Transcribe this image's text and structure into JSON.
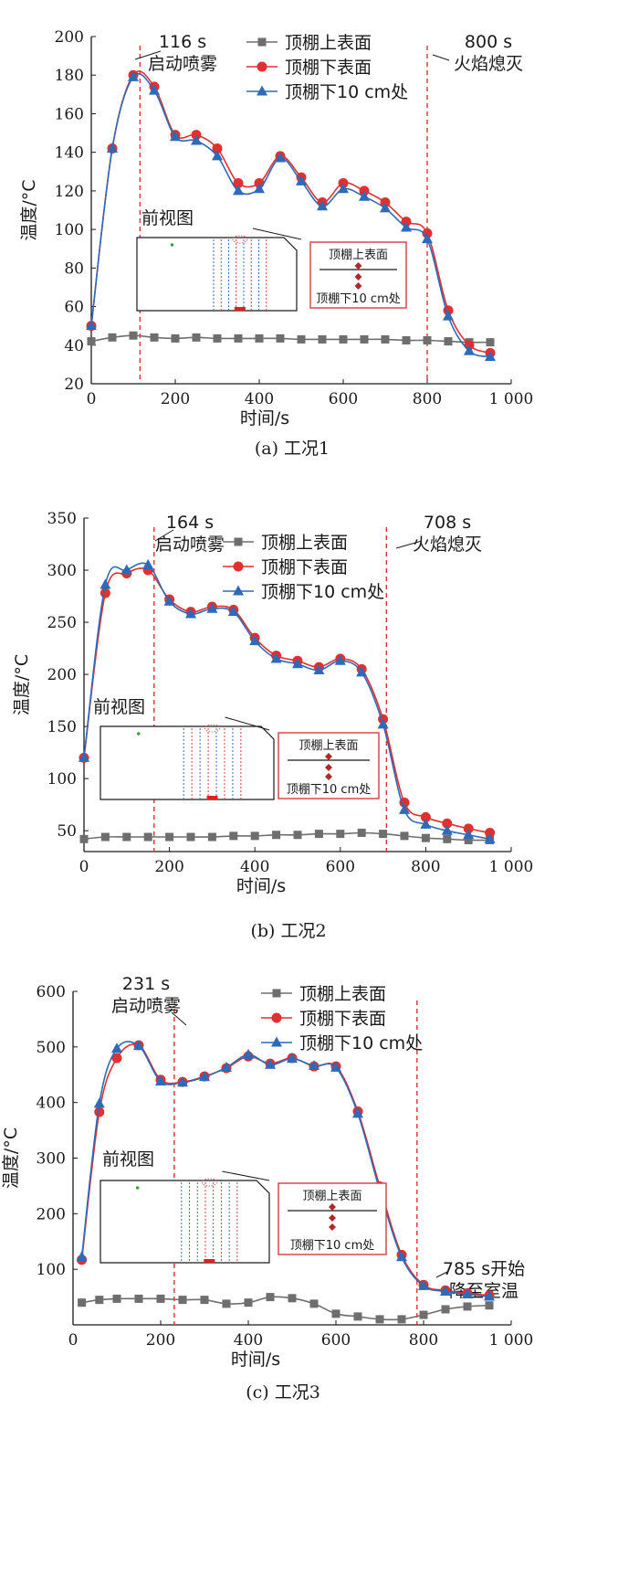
{
  "chart_data": [
    {
      "type": "line",
      "caption": "(a) 工况1",
      "xlabel": "时间/s",
      "ylabel": "温度/°C",
      "xlim": [
        0,
        1000
      ],
      "ylim": [
        20,
        200
      ],
      "xticks": [
        "0",
        "200",
        "400",
        "600",
        "800",
        "1 000"
      ],
      "yticks": [
        "20",
        "40",
        "60",
        "80",
        "100",
        "120",
        "140",
        "160",
        "180",
        "200"
      ],
      "legend_position": "top-center",
      "series": [
        {
          "name": "顶棚上表面",
          "color": "#6e6e6e",
          "marker": "square",
          "x": [
            0,
            50,
            100,
            150,
            200,
            250,
            300,
            350,
            400,
            450,
            500,
            550,
            600,
            650,
            700,
            750,
            800,
            850,
            900,
            950
          ],
          "y": [
            42,
            44,
            45,
            44,
            43.5,
            44,
            43.5,
            43.5,
            43.5,
            43.5,
            43,
            43,
            43,
            43,
            43,
            42.5,
            42.5,
            42,
            41.5,
            41.5
          ]
        },
        {
          "name": "顶棚下表面",
          "color": "#e03030",
          "marker": "circle",
          "x": [
            0,
            50,
            100,
            150,
            200,
            250,
            300,
            350,
            400,
            450,
            500,
            550,
            600,
            650,
            700,
            750,
            800,
            850,
            900,
            950
          ],
          "y": [
            50,
            142,
            180,
            174,
            149,
            149,
            142,
            124,
            124,
            138,
            127,
            114,
            124,
            120,
            114,
            104,
            98,
            58,
            40,
            36
          ]
        },
        {
          "name": "顶棚下10 cm处",
          "color": "#2d6ab8",
          "marker": "triangle",
          "x": [
            0,
            50,
            100,
            150,
            200,
            250,
            300,
            350,
            400,
            450,
            500,
            550,
            600,
            650,
            700,
            750,
            800,
            850,
            900,
            950
          ],
          "y": [
            50,
            142,
            179,
            172,
            148,
            146,
            138,
            120,
            121,
            137,
            125,
            112,
            121,
            117,
            111,
            101,
            95,
            55,
            37,
            34
          ]
        }
      ],
      "annotations": [
        {
          "text": "116 s\n启动喷雾",
          "x": 116
        },
        {
          "text": "800 s\n火焰熄灭",
          "x": 800
        }
      ],
      "inset": {
        "title": "前视图",
        "labels": [
          "顶棚上表面",
          "顶棚下10 cm处"
        ]
      }
    },
    {
      "type": "line",
      "caption": "(b) 工况2",
      "xlabel": "时间/s",
      "ylabel": "温度/°C",
      "xlim": [
        0,
        1000
      ],
      "ylim": [
        30,
        350
      ],
      "xticks": [
        "0",
        "200",
        "400",
        "600",
        "800",
        "1 000"
      ],
      "yticks": [
        "50",
        "100",
        "150",
        "200",
        "250",
        "300",
        "350"
      ],
      "legend_position": "top-center",
      "series": [
        {
          "name": "顶棚上表面",
          "color": "#6e6e6e",
          "marker": "square",
          "x": [
            0,
            50,
            100,
            150,
            200,
            250,
            300,
            350,
            400,
            450,
            500,
            550,
            600,
            650,
            700,
            750,
            800,
            850,
            900,
            950
          ],
          "y": [
            42,
            44,
            44,
            44,
            44,
            44,
            44,
            45,
            45,
            46,
            46,
            47,
            47,
            48,
            47,
            45,
            43,
            42,
            41,
            41
          ]
        },
        {
          "name": "顶棚下表面",
          "color": "#e03030",
          "marker": "circle",
          "x": [
            0,
            50,
            100,
            150,
            200,
            250,
            300,
            350,
            400,
            450,
            500,
            550,
            600,
            650,
            700,
            750,
            800,
            850,
            900,
            950
          ],
          "y": [
            120,
            278,
            297,
            300,
            272,
            260,
            265,
            262,
            235,
            218,
            213,
            207,
            215,
            205,
            157,
            77,
            63,
            57,
            52,
            48
          ]
        },
        {
          "name": "顶棚下10 cm处",
          "color": "#2d6ab8",
          "marker": "triangle",
          "x": [
            0,
            50,
            100,
            150,
            200,
            250,
            300,
            350,
            400,
            450,
            500,
            550,
            600,
            650,
            700,
            750,
            800,
            850,
            900,
            950
          ],
          "y": [
            120,
            286,
            300,
            305,
            270,
            258,
            263,
            260,
            232,
            215,
            210,
            204,
            213,
            202,
            152,
            70,
            56,
            50,
            46,
            42
          ]
        }
      ],
      "annotations": [
        {
          "text": "164 s\n启动喷雾",
          "x": 164
        },
        {
          "text": "708 s\n火焰熄灭",
          "x": 708
        }
      ],
      "inset": {
        "title": "前视图",
        "labels": [
          "顶棚上表面",
          "顶棚下10 cm处"
        ]
      }
    },
    {
      "type": "line",
      "caption": "(c) 工况3",
      "xlabel": "时间/s",
      "ylabel": "温度/°C",
      "xlim": [
        0,
        1000
      ],
      "ylim": [
        0,
        600
      ],
      "xticks": [
        "0",
        "200",
        "400",
        "600",
        "800",
        "1 000"
      ],
      "yticks": [
        "100",
        "200",
        "300",
        "400",
        "500",
        "600"
      ],
      "legend_position": "top-center",
      "series": [
        {
          "name": "顶棚上表面",
          "color": "#6e6e6e",
          "marker": "square",
          "x": [
            20,
            60,
            100,
            150,
            200,
            250,
            300,
            350,
            400,
            450,
            500,
            550,
            600,
            650,
            700,
            750,
            800,
            850,
            900,
            950
          ],
          "y": [
            40,
            45,
            47,
            47,
            47,
            45,
            45,
            38,
            40,
            50,
            48,
            38,
            20,
            15,
            10,
            10,
            18,
            28,
            33,
            35
          ]
        },
        {
          "name": "顶棚下表面",
          "color": "#e03030",
          "marker": "circle",
          "x": [
            20,
            60,
            100,
            150,
            200,
            250,
            300,
            350,
            400,
            450,
            500,
            550,
            600,
            650,
            700,
            750,
            800,
            850,
            900,
            950
          ],
          "y": [
            117,
            383,
            480,
            503,
            441,
            437,
            447,
            462,
            483,
            470,
            480,
            465,
            465,
            384,
            249,
            126,
            72,
            62,
            57,
            53
          ]
        },
        {
          "name": "顶棚下10 cm处",
          "color": "#2d6ab8",
          "marker": "triangle",
          "x": [
            20,
            60,
            100,
            150,
            200,
            250,
            300,
            350,
            400,
            450,
            500,
            550,
            600,
            650,
            700,
            750,
            800,
            850,
            900,
            950
          ],
          "y": [
            122,
            398,
            497,
            502,
            438,
            436,
            446,
            463,
            486,
            468,
            479,
            466,
            463,
            380,
            242,
            122,
            70,
            60,
            55,
            51
          ]
        }
      ],
      "annotations": [
        {
          "text": "231 s\n启动喷雾",
          "x": 231
        },
        {
          "text": "785 s开始\n降至室温",
          "x": 785
        }
      ],
      "inset": {
        "title": "前视图",
        "labels": [
          "顶棚上表面",
          "顶棚下10 cm处"
        ]
      }
    }
  ]
}
